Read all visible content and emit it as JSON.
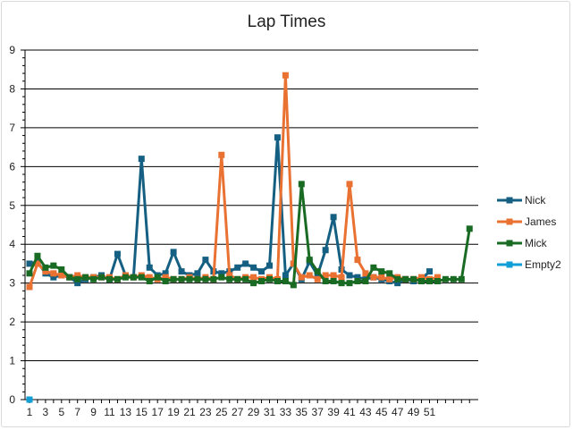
{
  "chart_data": {
    "type": "line",
    "title": "Lap Times",
    "xlabel": "",
    "ylabel": "",
    "ylim": [
      0,
      9
    ],
    "y_ticks": [
      0,
      1,
      2,
      3,
      4,
      5,
      6,
      7,
      8,
      9
    ],
    "x_tick_labels": [
      "1",
      "3",
      "5",
      "7",
      "9",
      "11",
      "13",
      "15",
      "17",
      "19",
      "21",
      "23",
      "25",
      "27",
      "29",
      "31",
      "33",
      "35",
      "37",
      "39",
      "41",
      "43",
      "45",
      "47",
      "49",
      "51"
    ],
    "grid": "horizontal major gridlines",
    "legend_position": "right",
    "series": [
      {
        "name": "Nick",
        "color": "#156082",
        "values": [
          3.5,
          3.55,
          3.25,
          3.15,
          3.2,
          3.15,
          3.0,
          3.1,
          3.15,
          3.2,
          3.1,
          3.75,
          3.2,
          3.15,
          6.2,
          3.4,
          3.2,
          3.25,
          3.8,
          3.3,
          3.2,
          3.25,
          3.6,
          3.3,
          3.25,
          3.3,
          3.4,
          3.5,
          3.4,
          3.3,
          3.45,
          6.75,
          3.2,
          3.5,
          3.1,
          3.55,
          3.2,
          3.85,
          4.7,
          3.35,
          3.2,
          3.15,
          3.1,
          3.15,
          3.1,
          3.05,
          3.0,
          3.1,
          3.05,
          3.1,
          3.3
        ]
      },
      {
        "name": "James",
        "color": "#e97132",
        "values": [
          2.9,
          3.5,
          3.3,
          3.25,
          3.2,
          3.15,
          3.2,
          3.15,
          3.15,
          3.15,
          3.15,
          3.1,
          3.2,
          3.15,
          3.2,
          3.15,
          3.1,
          3.15,
          3.1,
          3.1,
          3.15,
          3.1,
          3.15,
          3.1,
          6.3,
          3.2,
          3.1,
          3.15,
          3.15,
          3.1,
          3.15,
          3.1,
          8.35,
          3.5,
          3.15,
          3.2,
          3.1,
          3.2,
          3.2,
          3.15,
          5.55,
          3.6,
          3.25,
          3.15,
          3.15,
          3.1,
          3.15,
          3.1,
          3.1,
          3.15,
          3.1,
          3.15
        ]
      },
      {
        "name": "Mick",
        "color": "#196b24",
        "values": [
          3.25,
          3.7,
          3.4,
          3.45,
          3.35,
          3.15,
          3.1,
          3.15,
          3.1,
          3.15,
          3.1,
          3.1,
          3.15,
          3.15,
          3.15,
          3.05,
          3.15,
          3.05,
          3.1,
          3.1,
          3.1,
          3.1,
          3.1,
          3.1,
          3.15,
          3.1,
          3.1,
          3.1,
          3.0,
          3.05,
          3.1,
          3.05,
          3.05,
          2.95,
          5.55,
          3.6,
          3.3,
          3.05,
          3.05,
          3.0,
          3.0,
          3.05,
          3.05,
          3.4,
          3.3,
          3.25,
          3.1,
          3.1,
          3.1,
          3.05,
          3.05,
          3.05,
          3.1,
          3.1,
          3.1,
          4.4
        ]
      },
      {
        "name": "Empty2",
        "color": "#0f9ed5",
        "values": [
          0
        ]
      }
    ]
  }
}
